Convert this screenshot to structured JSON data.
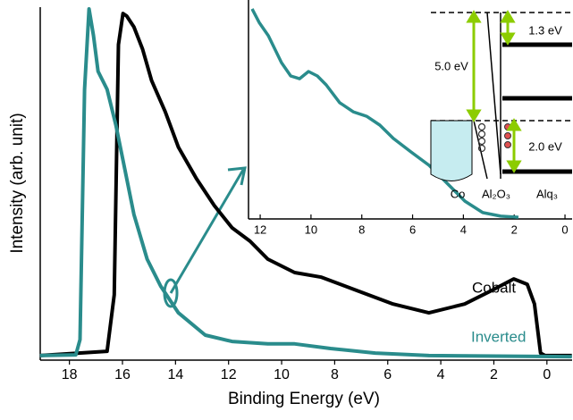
{
  "chart_data": [
    {
      "type": "line",
      "xlabel": "Binding Energy (eV)",
      "ylabel": "Intensity (arb. unit)",
      "xlim": [
        19.1,
        -0.95
      ],
      "ylim": [
        0,
        100
      ],
      "xticks": [
        18,
        16,
        14,
        12,
        10,
        8,
        6,
        4,
        2,
        0
      ],
      "series": [
        {
          "name": "Cobalt",
          "color": "#000000",
          "x": [
            19.11,
            16.58,
            16.31,
            16.15,
            15.98,
            15.84,
            15.57,
            15.24,
            14.9,
            14.39,
            13.89,
            13.21,
            12.54,
            11.87,
            11.19,
            10.52,
            9.51,
            8.5,
            7.15,
            5.8,
            4.45,
            3.1,
            2.09,
            1.25,
            0.74,
            0.47,
            0.24,
            0.07,
            -0.94
          ],
          "values": [
            1.3,
            2.5,
            18.5,
            89.4,
            98.2,
            97.5,
            94.4,
            88.1,
            79.2,
            70.4,
            60.3,
            51.4,
            43.8,
            37.5,
            33.7,
            28.6,
            24.8,
            23.5,
            19.7,
            15.9,
            13.4,
            15.9,
            19.7,
            23.0,
            21.5,
            15.9,
            2.0,
            1.3,
            1.3
          ]
        },
        {
          "name": "Inverted",
          "color": "#2a8c8c",
          "x": [
            19.11,
            17.76,
            17.6,
            17.43,
            17.26,
            17.09,
            16.92,
            16.58,
            16.25,
            15.91,
            15.57,
            15.07,
            14.56,
            13.89,
            12.88,
            11.87,
            10.52,
            9.51,
            8.16,
            6.47,
            4.45,
            -0.94
          ],
          "values": [
            1.3,
            1.5,
            5.8,
            76.7,
            99.5,
            91.9,
            81.8,
            76.7,
            66.6,
            54.0,
            41.3,
            28.6,
            21.0,
            13.4,
            7.1,
            5.3,
            4.6,
            4.6,
            3.3,
            2.0,
            1.3,
            1.0
          ]
        }
      ]
    },
    {
      "type": "line",
      "xlim": [
        12.46,
        -0.28
      ],
      "ylim": [
        0,
        100
      ],
      "xticks": [
        12,
        10,
        8,
        6,
        4,
        2,
        0
      ],
      "series": [
        {
          "color": "#2a8c8c",
          "x": [
            12.32,
            12.04,
            11.68,
            11.16,
            10.8,
            10.45,
            10.1,
            9.75,
            9.4,
            8.87,
            8.34,
            7.81,
            7.29,
            6.76,
            6.06,
            5.35,
            4.65,
            3.94,
            3.24,
            2.53,
            1.83
          ],
          "values": [
            99.2,
            92.8,
            86.5,
            73.8,
            67.5,
            66.2,
            69.6,
            67.5,
            63.3,
            54.9,
            50.6,
            48.5,
            44.3,
            38.0,
            31.6,
            25.3,
            16.9,
            8.4,
            3.0,
            1.3,
            0.8
          ]
        }
      ],
      "annotations": [
        "5.0 eV",
        "1.3 eV",
        "2.0 eV",
        "Co",
        "Al₂O₃",
        "Alq₃"
      ]
    }
  ]
}
